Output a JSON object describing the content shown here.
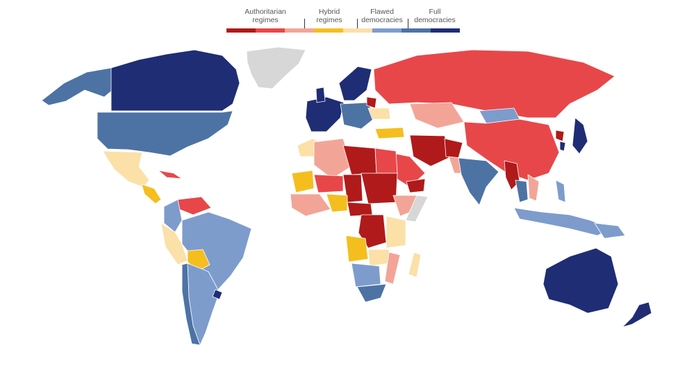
{
  "legend": {
    "categories": [
      {
        "label_line1": "Authoritarian",
        "label_line2": "regimes"
      },
      {
        "label_line1": "Hybrid",
        "label_line2": "regimes"
      },
      {
        "label_line1": "Flawed",
        "label_line2": "democracies"
      },
      {
        "label_line1": "Full",
        "label_line2": "democracies"
      }
    ],
    "colors": [
      "#b01a1a",
      "#e8474a",
      "#f2a597",
      "#f5be1f",
      "#fbe0a8",
      "#7d9ccc",
      "#4d73a4",
      "#1f2d75"
    ],
    "no_data_color": "#d7d7d7"
  }
}
